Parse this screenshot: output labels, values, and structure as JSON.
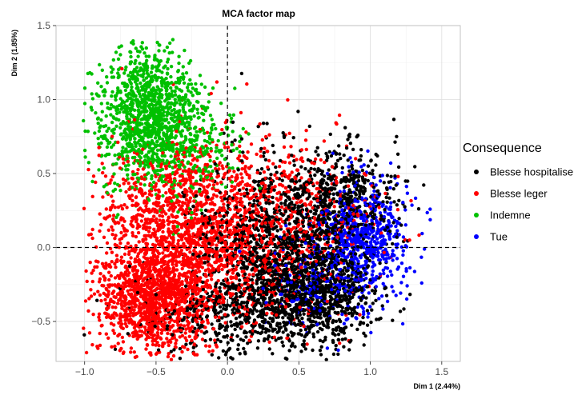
{
  "chart_data": {
    "type": "scatter",
    "title": "MCA factor map",
    "xlabel": "Dim 1 (2.44%)",
    "ylabel": "Dim 2 (1.85%)",
    "xlim": [
      -1.2,
      1.63
    ],
    "ylim": [
      -0.77,
      1.5
    ],
    "x_ticks": [
      -1.0,
      -0.5,
      0.0,
      0.5,
      1.0,
      1.5
    ],
    "x_tick_labels": [
      "−1.0",
      "−0.5",
      "0.0",
      "0.5",
      "1.0",
      "1.5"
    ],
    "y_ticks": [
      -0.5,
      0.0,
      0.5,
      1.0,
      1.5
    ],
    "y_tick_labels": [
      "−0.5",
      "0.0",
      "0.5",
      "1.0",
      "1.5"
    ],
    "grid": true,
    "reference_lines": {
      "x": 0,
      "y": 0,
      "style": "dashed"
    },
    "legend": {
      "title": "Consequence",
      "position": "right"
    },
    "series": [
      {
        "name": "Blesse hospitalise",
        "color": "#000000",
        "clusters": [
          {
            "cx": 0.6,
            "cy": -0.3,
            "sx": 0.22,
            "sy": 0.18,
            "n": 900
          },
          {
            "cx": 0.35,
            "cy": 0.05,
            "sx": 0.28,
            "sy": 0.3,
            "n": 900
          },
          {
            "cx": 0.8,
            "cy": 0.3,
            "sx": 0.2,
            "sy": 0.2,
            "n": 500
          },
          {
            "cx": 0.0,
            "cy": -0.45,
            "sx": 0.3,
            "sy": 0.15,
            "n": 400
          }
        ]
      },
      {
        "name": "Blesse leger",
        "color": "#ff0000",
        "clusters": [
          {
            "cx": -0.5,
            "cy": -0.35,
            "sx": 0.2,
            "sy": 0.18,
            "n": 1200
          },
          {
            "cx": -0.35,
            "cy": 0.15,
            "sx": 0.28,
            "sy": 0.28,
            "n": 1100
          },
          {
            "cx": 0.1,
            "cy": 0.05,
            "sx": 0.35,
            "sy": 0.3,
            "n": 700
          },
          {
            "cx": 0.5,
            "cy": 0.25,
            "sx": 0.3,
            "sy": 0.25,
            "n": 300
          }
        ]
      },
      {
        "name": "Indemne",
        "color": "#00c000",
        "clusters": [
          {
            "cx": -0.55,
            "cy": 0.9,
            "sx": 0.18,
            "sy": 0.22,
            "n": 1100
          },
          {
            "cx": -0.3,
            "cy": 0.65,
            "sx": 0.2,
            "sy": 0.2,
            "n": 300
          }
        ]
      },
      {
        "name": "Tue",
        "color": "#0000ff",
        "clusters": [
          {
            "cx": 0.95,
            "cy": 0.05,
            "sx": 0.16,
            "sy": 0.2,
            "n": 650
          },
          {
            "cx": 0.6,
            "cy": -0.25,
            "sx": 0.15,
            "sy": 0.15,
            "n": 150
          }
        ]
      }
    ]
  }
}
